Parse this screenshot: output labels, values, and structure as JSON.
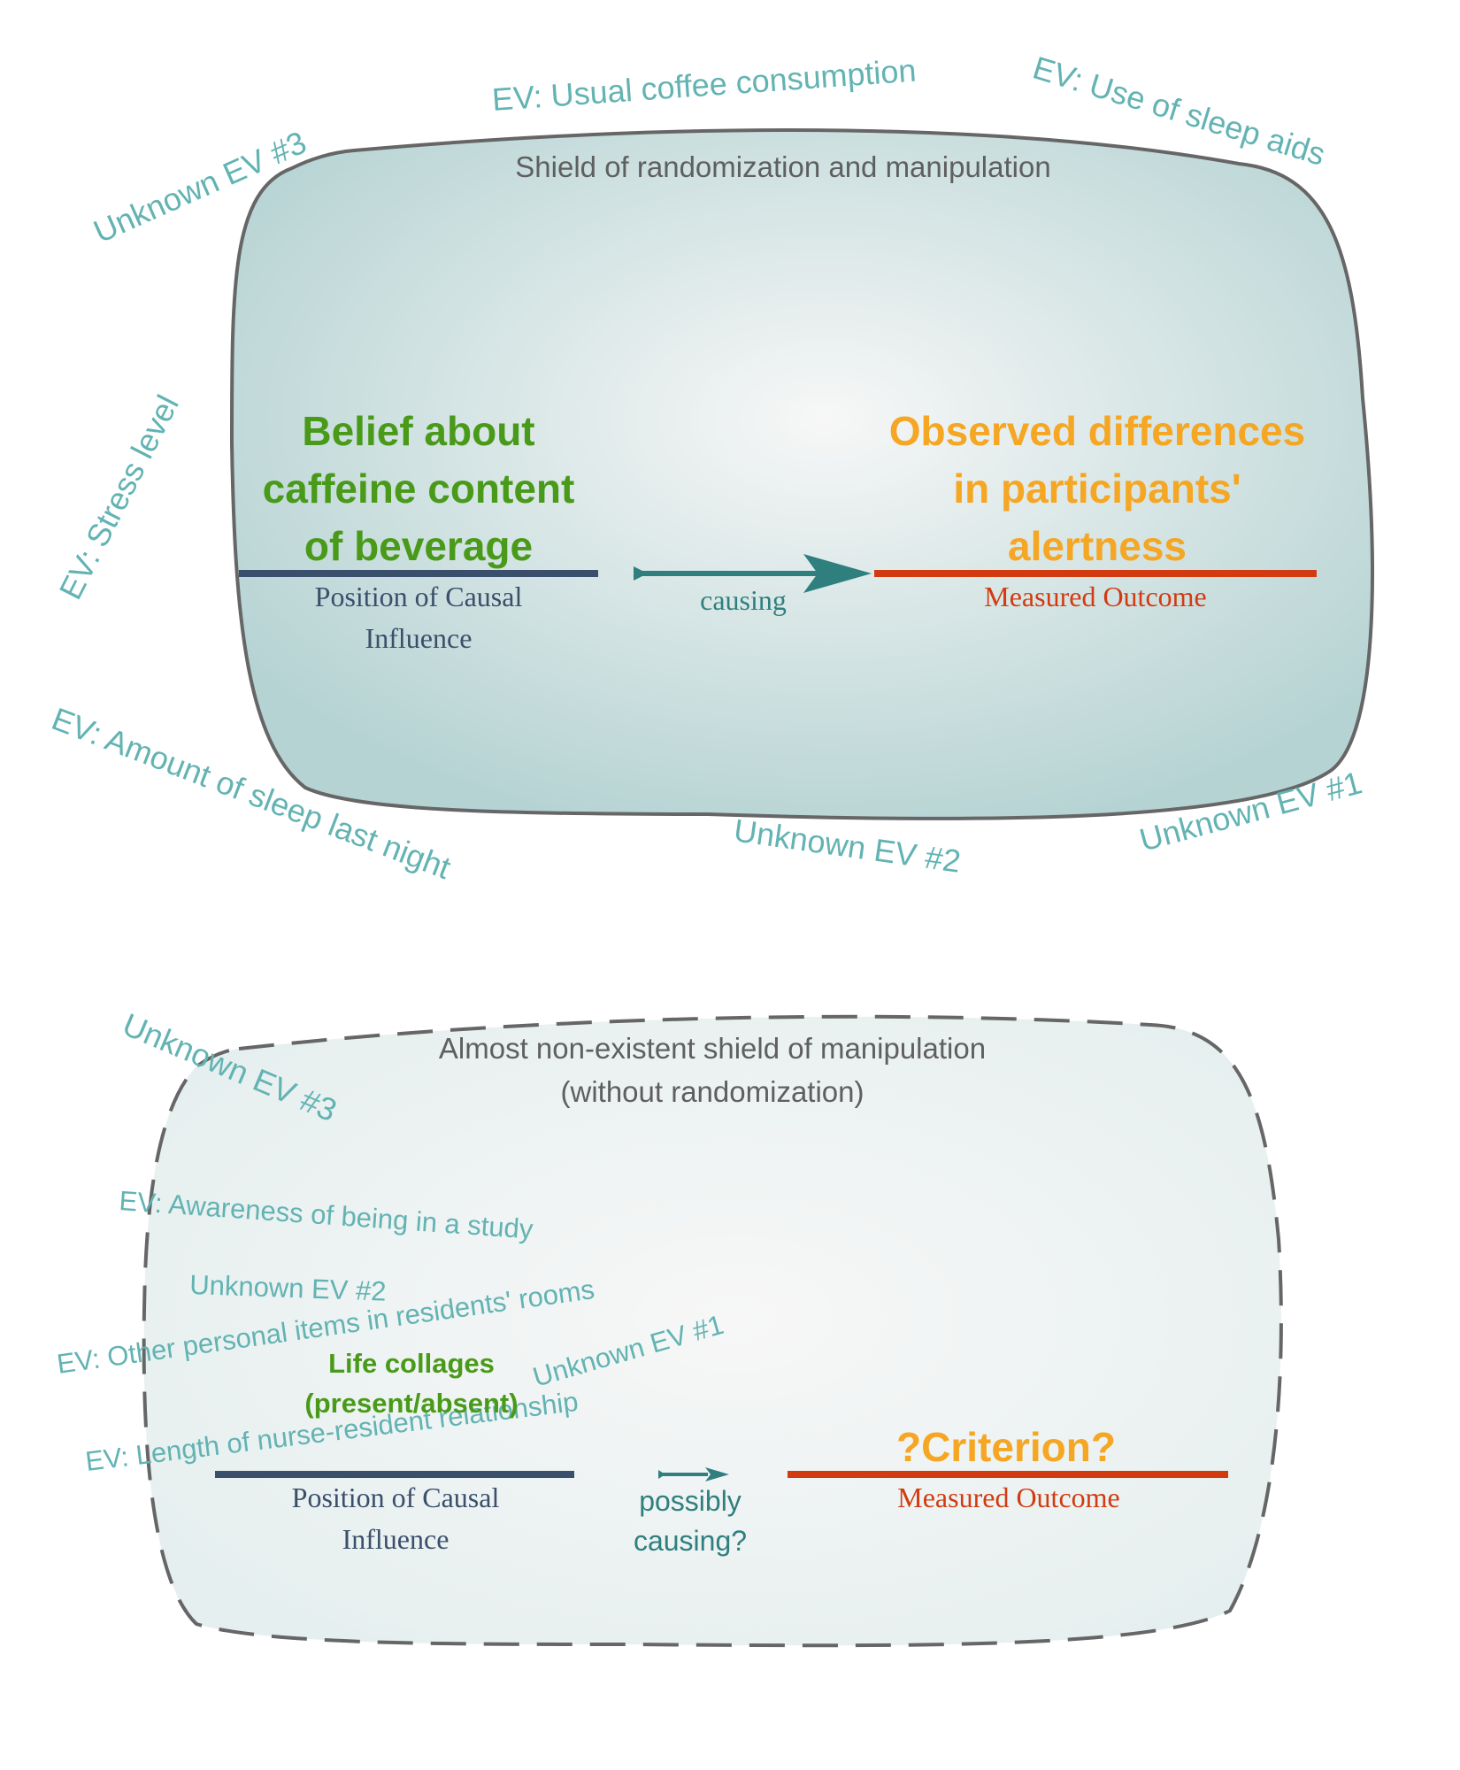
{
  "colors": {
    "ev_text": "#63b3b3",
    "shield_title": "#5f5f5f",
    "cause_text": "#4a9a1a",
    "outcome_text": "#f5a623",
    "cause_line": "#3a4f6b",
    "outcome_line": "#d23b10",
    "arrow": "#2f7f7f",
    "shield_border": "#666666",
    "shield_fill_center": "#f7f7f7",
    "shield_fill_edge": "#b6d3d3",
    "shield2_fill_edge": "#e6efef"
  },
  "top": {
    "shield_title": "Shield of randomization and manipulation",
    "cause": {
      "lines": [
        "Belief about",
        "caffeine content",
        "of beverage"
      ]
    },
    "cause_caption": [
      "Position of Causal",
      "Influence"
    ],
    "arrow_label": "causing",
    "outcome": {
      "lines": [
        "Observed differences",
        "in participants'",
        "alertness"
      ]
    },
    "outcome_caption": "Measured Outcome",
    "evs": {
      "usual_coffee": "EV: Usual coffee consumption",
      "sleep_aids": "EV: Use of sleep aids",
      "unknown3": "Unknown EV #3",
      "stress": "EV: Stress level",
      "sleep_last_night": "EV: Amount of sleep last night",
      "unknown2": "Unknown EV #2",
      "unknown1": "Unknown EV #1"
    }
  },
  "bottom": {
    "shield_title": [
      "Almost non-existent shield of manipulation",
      "(without randomization)"
    ],
    "cause": {
      "lines": [
        "Life collages",
        "(present/absent)"
      ]
    },
    "cause_caption": [
      "Position of Causal",
      "Influence"
    ],
    "arrow_label": [
      "possibly",
      "causing?"
    ],
    "outcome": "?Criterion?",
    "outcome_caption": "Measured Outcome",
    "evs": {
      "unknown3": "Unknown EV #3",
      "awareness": "EV: Awareness of being in a study",
      "unknown2": "Unknown EV #2",
      "personal_items": "EV: Other personal items in residents' rooms",
      "unknown1": "Unknown EV #1",
      "nurse_relationship": "EV: Length of nurse-resident relationship"
    }
  }
}
